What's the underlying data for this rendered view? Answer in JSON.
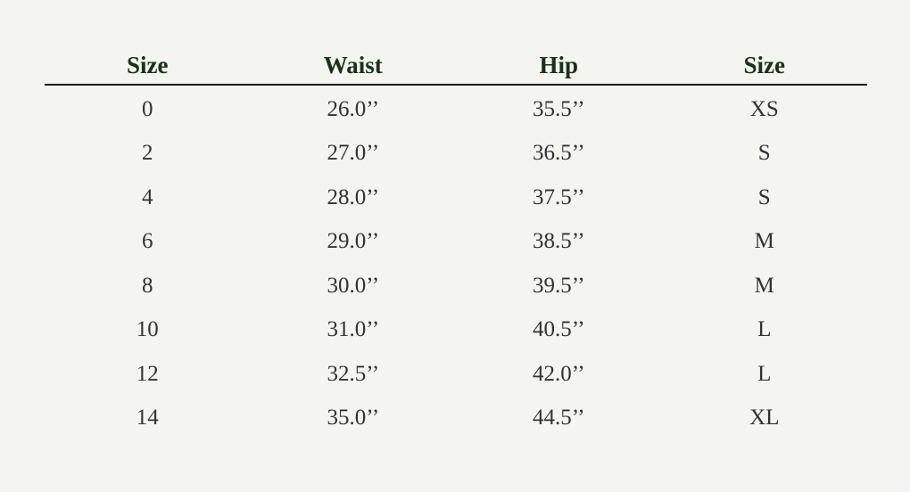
{
  "table": {
    "headers": [
      "Size",
      "Waist",
      "Hip",
      "Size"
    ],
    "rows": [
      [
        "0",
        "26.0’’",
        "35.5’’",
        "XS"
      ],
      [
        "2",
        "27.0’’",
        "36.5’’",
        "S"
      ],
      [
        "4",
        "28.0’’",
        "37.5’’",
        "S"
      ],
      [
        "6",
        "29.0’’",
        "38.5’’",
        "M"
      ],
      [
        "8",
        "30.0’’",
        "39.5’’",
        "M"
      ],
      [
        "10",
        "31.0’’",
        "40.5’’",
        "L"
      ],
      [
        "12",
        "32.5’’",
        "42.0’’",
        "L"
      ],
      [
        "14",
        "35.0’’",
        "44.5’’",
        "XL"
      ]
    ]
  },
  "colors": {
    "background": "#f4f4f0",
    "header_text": "#1c301c",
    "body_text": "#333333"
  }
}
